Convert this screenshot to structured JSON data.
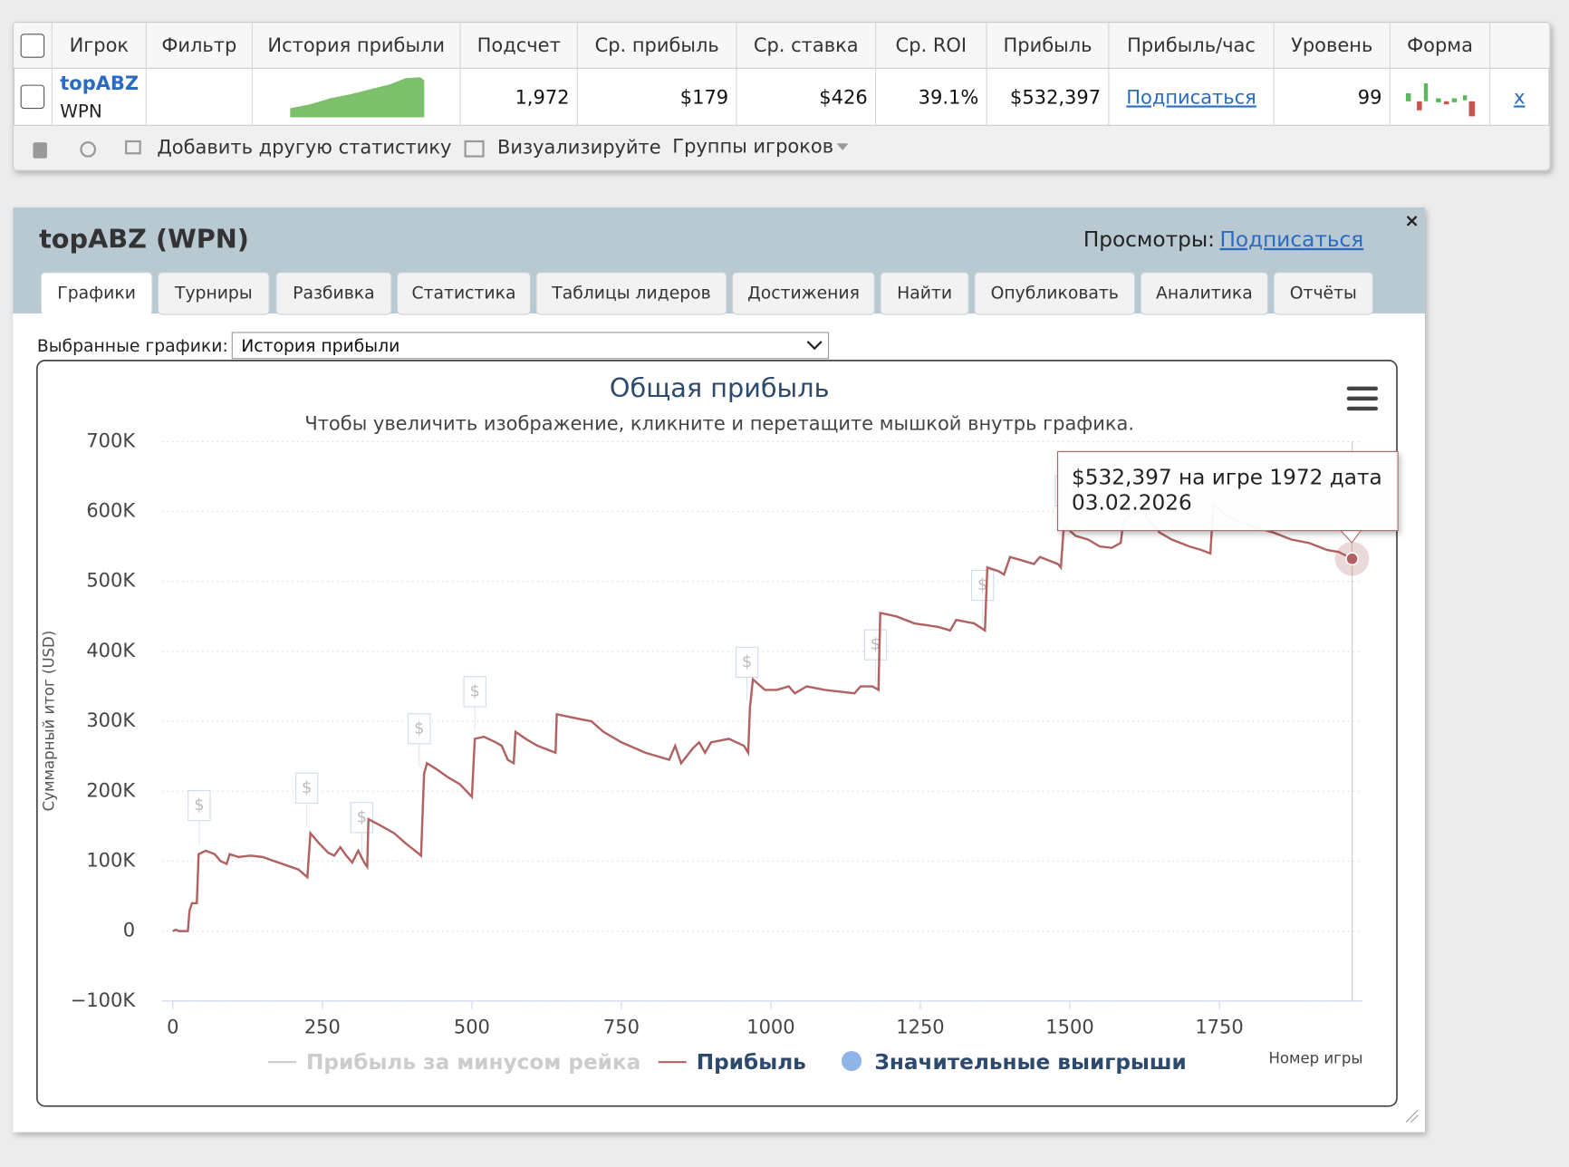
{
  "table": {
    "headers": [
      "Игрок",
      "Фильтр",
      "История прибыли",
      "Подсчет",
      "Ср. прибыль",
      "Ср. ставка",
      "Ср. ROI",
      "Прибыль",
      "Прибыль/час",
      "Уровень",
      "Форма"
    ],
    "row": {
      "player": "topABZ",
      "network": "WPN",
      "cells": [
        "1,972",
        "$179",
        "$426",
        "39.1%",
        "$532,397"
      ],
      "per_hour": "Подписаться",
      "level": "99",
      "remove": "x"
    }
  },
  "toolbar": {
    "add_stat": "Добавить другую статистику",
    "visualize": "Визуализируйте",
    "groups": "Группы игроков"
  },
  "panel": {
    "title": "topABZ (WPN)",
    "views_label": "Просмотры:",
    "views_link": "Подписаться",
    "tabs": [
      "Графики",
      "Турниры",
      "Разбивка",
      "Статистика",
      "Таблицы лидеров",
      "Достижения",
      "Найти",
      "Опубликовать",
      "Аналитика",
      "Отчёты"
    ],
    "select_label": "Выбранные графики:",
    "select_value": "История прибыли"
  },
  "chart_data": {
    "type": "line",
    "title": "Общая прибыль",
    "subtitle": "Чтобы увеличить изображение, кликните и перетащите мышкой внутрь графика.",
    "y_label": "Суммарный итог (USD)",
    "x_label": "Номер игры",
    "xlim": [
      -18,
      1990
    ],
    "ylim": [
      -100000,
      700000
    ],
    "xticks": [
      0,
      250,
      500,
      750,
      1000,
      1250,
      1500,
      1750
    ],
    "yticks": [
      {
        "value": -100000,
        "label": "−100K"
      },
      0,
      {
        "value": 100000,
        "label": "100K"
      },
      {
        "value": 200000,
        "label": "200K"
      },
      {
        "value": 300000,
        "label": "300K"
      },
      {
        "value": 400000,
        "label": "400K"
      },
      {
        "value": 500000,
        "label": "500K"
      },
      {
        "value": 600000,
        "label": "600K"
      },
      {
        "value": 700000,
        "label": "700K"
      }
    ],
    "grid": true,
    "x": [
      0,
      5,
      10,
      25,
      28,
      32,
      40,
      43,
      55,
      70,
      80,
      90,
      95,
      110,
      130,
      150,
      170,
      190,
      210,
      225,
      230,
      245,
      260,
      270,
      280,
      290,
      300,
      310,
      320,
      325,
      327,
      345,
      370,
      390,
      405,
      415,
      420,
      425,
      440,
      460,
      480,
      500,
      505,
      520,
      540,
      550,
      560,
      570,
      573,
      590,
      610,
      640,
      642,
      670,
      700,
      720,
      750,
      790,
      830,
      840,
      850,
      870,
      880,
      890,
      900,
      930,
      955,
      962,
      965,
      970,
      990,
      1010,
      1030,
      1040,
      1060,
      1090,
      1120,
      1140,
      1150,
      1170,
      1180,
      1183,
      1210,
      1240,
      1280,
      1300,
      1310,
      1340,
      1358,
      1362,
      1380,
      1390,
      1400,
      1420,
      1440,
      1450,
      1465,
      1480,
      1485,
      1490,
      1510,
      1530,
      1550,
      1570,
      1585,
      1590,
      1620,
      1650,
      1670,
      1700,
      1720,
      1735,
      1740,
      1760,
      1800,
      1840,
      1870,
      1900,
      1930,
      1950,
      1972
    ],
    "series": [
      {
        "name": "Прибыль",
        "color": "#b06262",
        "values": [
          0,
          2000,
          0,
          0,
          30000,
          40000,
          40000,
          110000,
          115000,
          110000,
          100000,
          96000,
          110000,
          106000,
          108000,
          106000,
          100000,
          94000,
          88000,
          77000,
          140000,
          125000,
          112000,
          108000,
          120000,
          108000,
          98000,
          115000,
          98000,
          92000,
          160000,
          152000,
          140000,
          125000,
          115000,
          108000,
          225000,
          240000,
          232000,
          220000,
          210000,
          192000,
          275000,
          278000,
          270000,
          265000,
          245000,
          240000,
          285000,
          275000,
          265000,
          255000,
          310000,
          305000,
          300000,
          285000,
          270000,
          255000,
          245000,
          265000,
          240000,
          262000,
          270000,
          255000,
          270000,
          275000,
          265000,
          255000,
          320000,
          360000,
          345000,
          345000,
          350000,
          340000,
          350000,
          345000,
          342000,
          340000,
          350000,
          350000,
          345000,
          455000,
          450000,
          440000,
          435000,
          430000,
          445000,
          440000,
          430000,
          520000,
          515000,
          510000,
          535000,
          530000,
          525000,
          535000,
          530000,
          525000,
          520000,
          580000,
          565000,
          560000,
          550000,
          548000,
          555000,
          590000,
          600000,
          570000,
          560000,
          550000,
          545000,
          540000,
          610000,
          595000,
          580000,
          570000,
          560000,
          555000,
          545000,
          542000,
          532397
        ]
      }
    ],
    "legend": [
      {
        "name": "Прибыль за минусом рейка",
        "color": "#cccccc"
      },
      {
        "name": "Прибыль",
        "color": "#b06262"
      },
      {
        "name": "Значительные выигрыши",
        "color": "#8fb5e8"
      }
    ],
    "flags": [
      {
        "x": 44,
        "text": "$"
      },
      {
        "x": 224,
        "text": "$"
      },
      {
        "x": 316,
        "text": "$"
      },
      {
        "x": 412,
        "text": "$"
      },
      {
        "x": 505,
        "text": "$"
      },
      {
        "x": 960,
        "text": "$"
      },
      {
        "x": 1175,
        "text": "$"
      },
      {
        "x": 1354,
        "text": "$"
      },
      {
        "x": 1494,
        "text": "$"
      }
    ],
    "tooltip": {
      "line1": "$532,397 на игре 1972 дата",
      "line2": "03.02.2026"
    }
  }
}
